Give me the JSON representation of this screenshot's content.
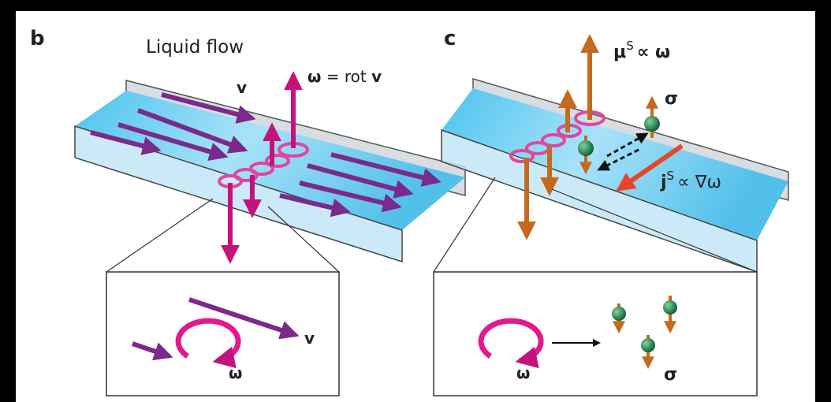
{
  "panel_b": {
    "label": "b",
    "title": "Liquid flow",
    "velocity": "v",
    "vorticity": {
      "symbol": "ω",
      "relation": "= rot",
      "vector": "v"
    },
    "inset": {
      "velocity": "v",
      "vorticity": "ω"
    }
  },
  "panel_c": {
    "label": "c",
    "spin_moment": {
      "symbol": "μ",
      "sup": "S",
      "relation": "∝ ω"
    },
    "spin": "σ",
    "spin_current": {
      "symbol": "j",
      "sup": "S",
      "relation": "∝ ∇ω"
    },
    "inset": {
      "vorticity": "ω",
      "spin": "σ"
    }
  }
}
